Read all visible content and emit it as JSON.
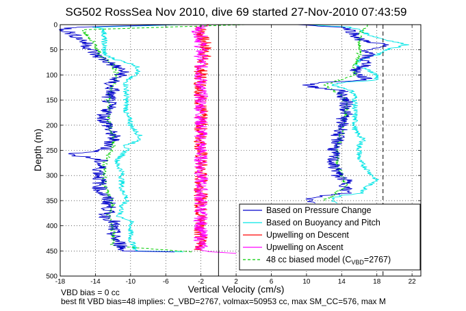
{
  "chart_data": {
    "type": "line",
    "title": "SG502 RossSea Nov 2010, dive 69 started 27-Nov-2010 07:43:59",
    "xlabel": "Vertical Velocity (cm/s)",
    "ylabel": "Depth (m)",
    "xlim": [
      -18,
      23
    ],
    "ylim": [
      500,
      0
    ],
    "y_reversed": true,
    "x_ticks": [
      "-18",
      "-14",
      "-10",
      "-6",
      "-2",
      "2",
      "6",
      "10",
      "14",
      "18",
      "22"
    ],
    "y_ticks": [
      "0",
      "50",
      "100",
      "150",
      "200",
      "250",
      "300",
      "350",
      "400",
      "450",
      "500"
    ],
    "grid": true,
    "legend_position": "bottom-right",
    "reference_lines": [
      {
        "x": 0,
        "style": "solid",
        "color": "#000000"
      },
      {
        "x": 18.7,
        "style": "dashed",
        "color": "#000000"
      }
    ],
    "legend": [
      {
        "label": "Based on Pressure Change",
        "color": "#0000cc",
        "style": "solid"
      },
      {
        "label": "Based on Buoyancy and Pitch",
        "color": "#00e5e5",
        "style": "solid"
      },
      {
        "label": "Upwelling on Descent",
        "color": "#ff0000",
        "style": "solid"
      },
      {
        "label": "Upwelling on Ascent",
        "color": "#ff00ff",
        "style": "solid"
      },
      {
        "label": "48 cc biased model (C",
        "sub": "VBD",
        "suffix": "=2767)",
        "color": "#00cc00",
        "style": "dashed"
      }
    ],
    "series": [
      {
        "key": "pressure_descent",
        "color": "#0000cc",
        "depth": [
          0,
          5,
          10,
          20,
          30,
          40,
          50,
          60,
          70,
          80,
          90,
          100,
          110,
          120,
          130,
          140,
          150,
          160,
          170,
          180,
          190,
          200,
          210,
          220,
          230,
          240,
          250,
          255,
          260,
          265,
          270,
          280,
          290,
          300,
          310,
          320,
          330,
          340,
          350,
          360,
          370,
          380,
          390,
          400,
          410,
          420,
          430,
          440,
          450,
          452
        ],
        "values": [
          -5,
          -16.5,
          -17.5,
          -16.5,
          -15.5,
          -15,
          -14.5,
          -14,
          -13,
          -12,
          -11,
          -11,
          -12,
          -12.5,
          -12,
          -12.5,
          -12.5,
          -12.5,
          -12.5,
          -13,
          -13,
          -12.5,
          -12.5,
          -12,
          -12,
          -12.5,
          -13,
          -16,
          -16.5,
          -14.5,
          -13.5,
          -13.5,
          -13.5,
          -13.5,
          -13.5,
          -13.5,
          -13.5,
          -13,
          -12.5,
          -12.5,
          -12.5,
          -13,
          -12,
          -12,
          -12,
          -12,
          -11.5,
          -11,
          -11,
          -5
        ]
      },
      {
        "key": "buoyancy_descent",
        "color": "#00e5e5",
        "depth": [
          0,
          5,
          10,
          20,
          30,
          40,
          50,
          60,
          70,
          80,
          90,
          100,
          110,
          120,
          130,
          140,
          150,
          160,
          170,
          180,
          190,
          200,
          210,
          220,
          230,
          240,
          250,
          260,
          270,
          280,
          290,
          300,
          310,
          320,
          330,
          340,
          350,
          360,
          370,
          380,
          390,
          400,
          410,
          420,
          430,
          440,
          450,
          452
        ],
        "values": [
          -4,
          -14,
          -13,
          -13,
          -13,
          -13,
          -13,
          -13,
          -11.5,
          -9.5,
          -9,
          -9.5,
          -10.5,
          -10.5,
          -10.5,
          -10.5,
          -10.5,
          -10.5,
          -10.5,
          -10.5,
          -10,
          -10,
          -9.5,
          -9,
          -9,
          -10.5,
          -10.5,
          -11,
          -11.5,
          -11.5,
          -11,
          -11,
          -11,
          -11,
          -11,
          -10.5,
          -10.5,
          -11,
          -11,
          -11.5,
          -10,
          -10,
          -10,
          -10,
          -10,
          -9.5,
          -9.5,
          -4
        ]
      },
      {
        "key": "pressure_ascent",
        "color": "#0000cc",
        "depth": [
          0,
          5,
          10,
          20,
          30,
          40,
          50,
          60,
          70,
          80,
          90,
          100,
          110,
          115,
          120,
          125,
          130,
          140,
          150,
          160,
          170,
          180,
          190,
          200,
          210,
          220,
          230,
          240,
          250,
          260,
          270,
          280,
          290,
          300,
          310,
          320,
          330,
          335,
          340,
          345,
          350,
          355
        ],
        "values": [
          9,
          14,
          15,
          15.5,
          16,
          19,
          17,
          17,
          16.5,
          17,
          15.5,
          16,
          17,
          12,
          10,
          11,
          14,
          14,
          14.5,
          14.5,
          14.5,
          14.5,
          14,
          14,
          14,
          13.5,
          13.5,
          13.5,
          13,
          13,
          13,
          13,
          13.5,
          13.5,
          14.5,
          14.5,
          14.5,
          14.5,
          12,
          10.5,
          10.5,
          11
        ]
      },
      {
        "key": "buoyancy_ascent",
        "color": "#00e5e5",
        "depth": [
          0,
          5,
          10,
          20,
          30,
          40,
          50,
          60,
          70,
          80,
          90,
          100,
          110,
          115,
          120,
          125,
          130,
          140,
          150,
          160,
          170,
          180,
          190,
          200,
          210,
          220,
          230,
          240,
          250,
          260,
          270,
          280,
          290,
          300,
          310,
          320,
          330,
          335,
          340,
          345,
          350,
          355
        ],
        "values": [
          10,
          15,
          16,
          17,
          19,
          21.5,
          19,
          18,
          16,
          15.5,
          17,
          18,
          18,
          14,
          13,
          14,
          15,
          15.5,
          15.5,
          15.5,
          15.5,
          15.5,
          15.5,
          15.5,
          15.5,
          16,
          16.5,
          16,
          16,
          16,
          16,
          16.5,
          17,
          17.5,
          18,
          17,
          16.5,
          16.5,
          14,
          13,
          13,
          13.5
        ]
      },
      {
        "key": "upwelling_descent",
        "color": "#ff0000",
        "depth": [
          0,
          5,
          10,
          20,
          40,
          60,
          80,
          100,
          120,
          140,
          160,
          180,
          200,
          220,
          240,
          260,
          280,
          300,
          320,
          340,
          360,
          380,
          400,
          420,
          440,
          450
        ],
        "values": [
          -1,
          -2,
          -2,
          -2,
          -1.5,
          -1.5,
          -2,
          -2,
          -2,
          -2,
          -2,
          -2,
          -2,
          -2,
          -2,
          -2,
          -2,
          -2,
          -2,
          -2,
          -2,
          -2,
          -2,
          -2,
          -2,
          -2
        ]
      },
      {
        "key": "upwelling_ascent",
        "color": "#ff00ff",
        "depth": [
          0,
          5,
          10,
          20,
          40,
          60,
          80,
          100,
          120,
          140,
          160,
          180,
          200,
          220,
          240,
          260,
          280,
          300,
          320,
          340,
          360,
          380,
          400,
          420,
          440,
          450,
          455
        ],
        "values": [
          -2,
          -2,
          -2.5,
          -2,
          -2,
          -2,
          -2,
          -2,
          -2,
          -2,
          -2,
          -2,
          -2,
          -2,
          -2,
          -2,
          -2,
          -2,
          -2,
          -2,
          -2,
          -2,
          -2,
          -2,
          -2,
          -2,
          2
        ]
      },
      {
        "key": "model_descent",
        "color": "#00cc00",
        "dashed": true,
        "depth": [
          0,
          10,
          20,
          40,
          60,
          80,
          100,
          120,
          140,
          160,
          180,
          200,
          220,
          240,
          260,
          280,
          300,
          320,
          340,
          360,
          380,
          400,
          420,
          440,
          452
        ],
        "values": [
          3,
          -15.5,
          -15,
          -14,
          -13.5,
          -12,
          -11.5,
          -12,
          -12.5,
          -12.5,
          -12.5,
          -12.5,
          -12,
          -12,
          -12.5,
          -13,
          -13,
          -13,
          -12.5,
          -12,
          -12.5,
          -12,
          -12,
          -12,
          -3
        ]
      },
      {
        "key": "model_ascent",
        "color": "#00cc00",
        "dashed": true,
        "depth": [
          0,
          20,
          40,
          60,
          80,
          100,
          120,
          140,
          160,
          180,
          200,
          220,
          240,
          260,
          280,
          300,
          320,
          340,
          350
        ],
        "values": [
          17,
          16,
          16,
          16,
          15.5,
          15.5,
          12,
          14,
          14.5,
          14.5,
          14,
          14,
          13.5,
          13.5,
          13.5,
          14,
          14.5,
          13,
          12
        ]
      }
    ]
  },
  "footer": {
    "line1": "VBD bias = 0 cc",
    "line2": "best fit VBD bias=48 implies: C_VBD=2767, volmax=50953 cc, max SM_CC=576, max M"
  }
}
